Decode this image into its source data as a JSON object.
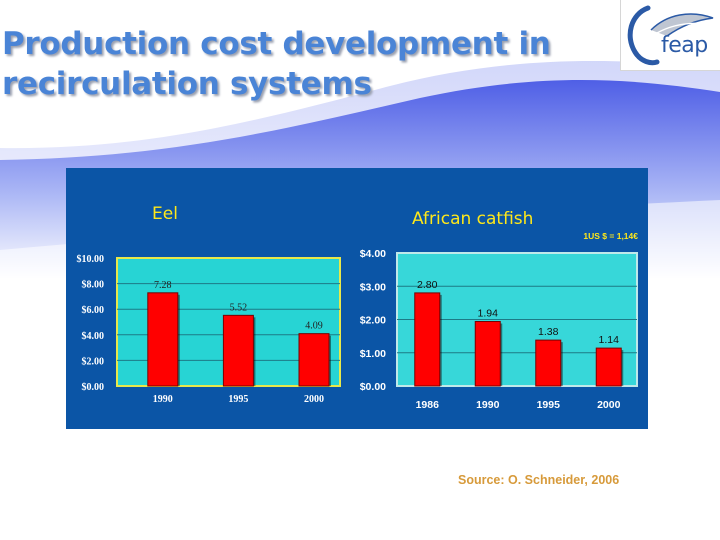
{
  "slide": {
    "title_line1": "Production cost development in",
    "title_line2": "recirculation systems",
    "logo_text": "feap",
    "source": "Source:  O. Schneider, 2006"
  },
  "colors": {
    "title": "#4a84d6",
    "panel_bg": "#0b55a6",
    "bar": "#ff0000",
    "eel_plot_bg": "#27d4d4",
    "catfish_plot_bg": "#37d7d9",
    "source_text": "#d79a3a"
  },
  "chart_data": [
    {
      "type": "bar",
      "title": "Eel",
      "categories": [
        "1990",
        "1995",
        "2000"
      ],
      "values": [
        7.28,
        5.52,
        4.09
      ],
      "data_labels": [
        "7.28",
        "5.52",
        "4.09"
      ],
      "yticks": [
        "$0.00",
        "$2.00",
        "$4.00",
        "$6.00",
        "$8.00",
        "$10.00"
      ],
      "ylim": [
        0,
        10
      ],
      "grid": true
    },
    {
      "type": "bar",
      "title": "African catfish",
      "annotation": "1US $ = 1,14€",
      "categories": [
        "1986",
        "1990",
        "1995",
        "2000"
      ],
      "values": [
        2.8,
        1.94,
        1.38,
        1.14
      ],
      "data_labels": [
        "2.80",
        "1.94",
        "1.38",
        "1.14"
      ],
      "yticks": [
        "$0.00",
        "$1.00",
        "$2.00",
        "$3.00",
        "$4.00"
      ],
      "ylim": [
        0,
        4
      ],
      "grid": true
    }
  ]
}
